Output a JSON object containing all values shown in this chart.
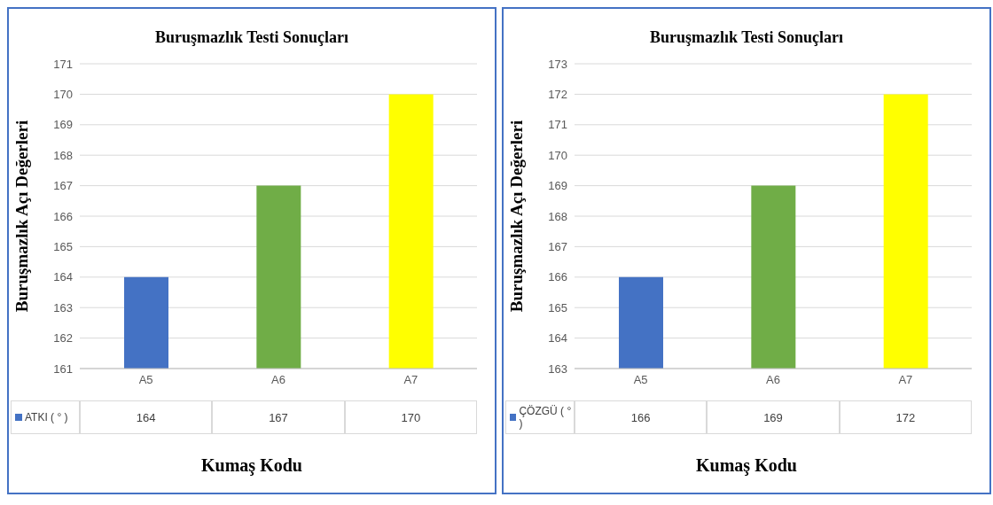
{
  "chart_data": [
    {
      "type": "bar",
      "title": "Buruşmazlık Testi Sonuçları",
      "xlabel": "Kumaş Kodu",
      "ylabel": "Buruşmazlık Açı Değerleri",
      "categories": [
        "A5",
        "A6",
        "A7"
      ],
      "series": [
        {
          "name": "ATKI ( ° )",
          "color": "#4472c4",
          "colors": [
            "#4472c4",
            "#70ad47",
            "#ffff00"
          ],
          "values": [
            164,
            167,
            170
          ]
        }
      ],
      "ylim": [
        161,
        171
      ],
      "yticks": [
        161,
        162,
        163,
        164,
        165,
        166,
        167,
        168,
        169,
        170,
        171
      ],
      "grid": "y",
      "legend": "bottom",
      "data_labels": true
    },
    {
      "type": "bar",
      "title": "Buruşmazlık Testi Sonuçları",
      "xlabel": "Kumaş Kodu",
      "ylabel": "Buruşmazlık Açı Değerleri",
      "categories": [
        "A5",
        "A6",
        "A7"
      ],
      "series": [
        {
          "name": "ÇÖZGÜ ( ° )",
          "color": "#4472c4",
          "colors": [
            "#4472c4",
            "#70ad47",
            "#ffff00"
          ],
          "values": [
            166,
            169,
            172
          ]
        }
      ],
      "ylim": [
        163,
        173
      ],
      "yticks": [
        163,
        164,
        165,
        166,
        167,
        168,
        169,
        170,
        171,
        172,
        173
      ],
      "grid": "y",
      "legend": "bottom",
      "data_labels": true
    }
  ]
}
